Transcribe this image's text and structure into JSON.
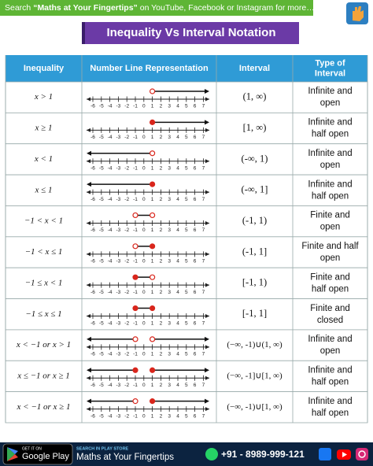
{
  "banner": {
    "prefix": "Search ",
    "bold": "“Maths at Your Fingertips”",
    "suffix": " on YouTube, Facebook or Instagram for more…"
  },
  "title": "Inequality Vs Interval Notation",
  "table": {
    "headers": [
      [
        "Inequality"
      ],
      [
        "Number Line Representation"
      ],
      [
        "Interval"
      ],
      [
        "Type of",
        "Interval"
      ]
    ],
    "number_line_ticks": [
      -6,
      -5,
      -4,
      -3,
      -2,
      -1,
      0,
      1,
      2,
      3,
      4,
      5,
      6,
      7
    ],
    "rows": [
      {
        "inequality": "x > 1",
        "marks": [
          {
            "kind": "ray-right",
            "start": 1,
            "start_closed": false
          }
        ],
        "interval": "(1, ∞)",
        "type": [
          "Infinite and",
          "open"
        ]
      },
      {
        "inequality": "x ≥ 1",
        "marks": [
          {
            "kind": "ray-right",
            "start": 1,
            "start_closed": true
          }
        ],
        "interval": "[1, ∞)",
        "type": [
          "Infinite and",
          "half open"
        ]
      },
      {
        "inequality": "x < 1",
        "marks": [
          {
            "kind": "ray-left",
            "start": 1,
            "start_closed": false
          }
        ],
        "interval": "(-∞, 1)",
        "type": [
          "Infinite and",
          "open"
        ]
      },
      {
        "inequality": "x ≤ 1",
        "marks": [
          {
            "kind": "ray-left",
            "start": 1,
            "start_closed": true
          }
        ],
        "interval": "(-∞, 1]",
        "type": [
          "Infinite and",
          "half open"
        ]
      },
      {
        "inequality": "−1 < x < 1",
        "marks": [
          {
            "kind": "segment",
            "start": -1,
            "start_closed": false,
            "end": 1,
            "end_closed": false
          }
        ],
        "interval": "(-1, 1)",
        "type": [
          "Finite and",
          "open"
        ]
      },
      {
        "inequality": "−1 < x ≤ 1",
        "marks": [
          {
            "kind": "segment",
            "start": -1,
            "start_closed": false,
            "end": 1,
            "end_closed": true
          }
        ],
        "interval": "(-1, 1]",
        "type": [
          "Finite and half",
          "open"
        ]
      },
      {
        "inequality": "−1 ≤ x < 1",
        "marks": [
          {
            "kind": "segment",
            "start": -1,
            "start_closed": true,
            "end": 1,
            "end_closed": false
          }
        ],
        "interval": "[-1, 1)",
        "type": [
          "Finite and",
          "half open"
        ]
      },
      {
        "inequality": "−1 ≤ x ≤ 1",
        "marks": [
          {
            "kind": "segment",
            "start": -1,
            "start_closed": true,
            "end": 1,
            "end_closed": true
          }
        ],
        "interval": "[-1, 1]",
        "type": [
          "Finite and",
          "closed"
        ]
      },
      {
        "inequality": "x < −1 or x > 1",
        "marks": [
          {
            "kind": "ray-left",
            "start": -1,
            "start_closed": false
          },
          {
            "kind": "ray-right",
            "start": 1,
            "start_closed": false
          }
        ],
        "interval": "(−∞, -1)∪(1, ∞)",
        "type": [
          "Infinite and",
          "open"
        ]
      },
      {
        "inequality": "x ≤ −1 or x ≥ 1",
        "marks": [
          {
            "kind": "ray-left",
            "start": -1,
            "start_closed": true
          },
          {
            "kind": "ray-right",
            "start": 1,
            "start_closed": true
          }
        ],
        "interval": "(−∞, -1]∪[1, ∞)",
        "type": [
          "Infinite and",
          "half open"
        ]
      },
      {
        "inequality": "x < −1 or x ≥ 1",
        "marks": [
          {
            "kind": "ray-left",
            "start": -1,
            "start_closed": false
          },
          {
            "kind": "ray-right",
            "start": 1,
            "start_closed": true
          }
        ],
        "interval": "(−∞, -1)∪[1, ∞)",
        "type": [
          "Infinite and",
          "half open"
        ]
      }
    ]
  },
  "footer": {
    "store_small": "GET IT ON",
    "store": "Google Play",
    "search": "SEARCH IN PLAY STORE",
    "name": "Maths at Your Fingertips",
    "phone": "+91 - 8989-999-121"
  }
}
